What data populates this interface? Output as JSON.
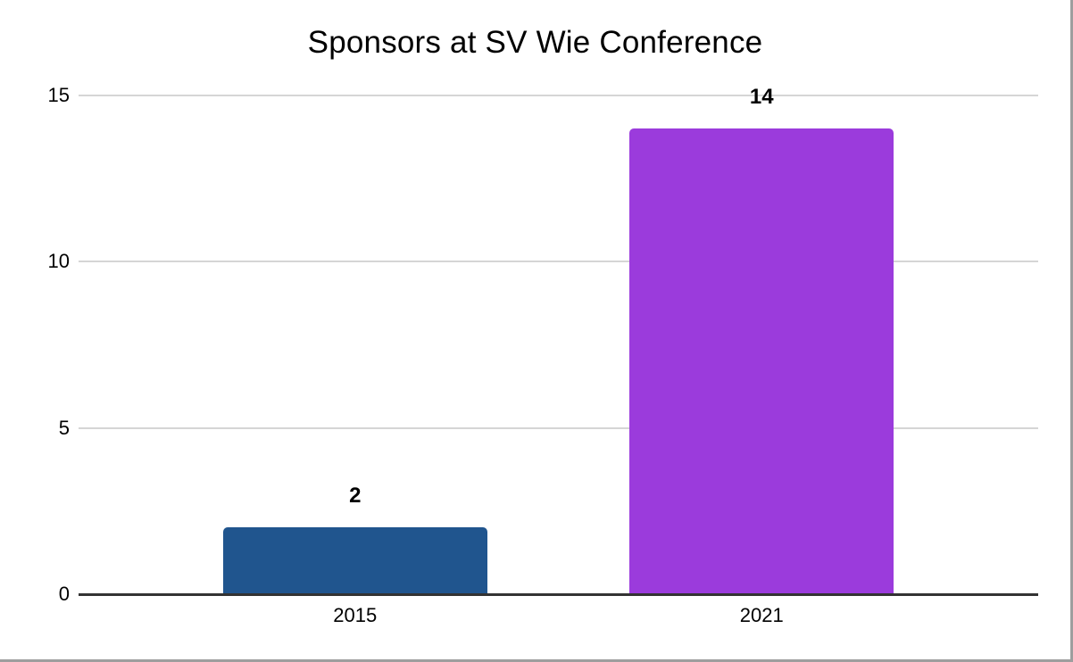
{
  "window": {
    "background": "#ffffff",
    "border_color": "#9e9e9e"
  },
  "chart_data": {
    "type": "bar",
    "title": "Sponsors at SV Wie Conference",
    "categories": [
      "2015",
      "2021"
    ],
    "values": [
      2,
      14
    ],
    "data_labels": [
      "2",
      "14"
    ],
    "series_colors": [
      "#20558e",
      "#9b3bdc"
    ],
    "yticks": [
      0,
      5,
      10,
      15
    ],
    "ylim": [
      0,
      15
    ],
    "xlabel": "",
    "ylabel": "",
    "grid": true,
    "gridline_color": "#d5d5d5",
    "axis_line_color": "#333333",
    "text_color": "#000000",
    "legend_position": "none"
  }
}
